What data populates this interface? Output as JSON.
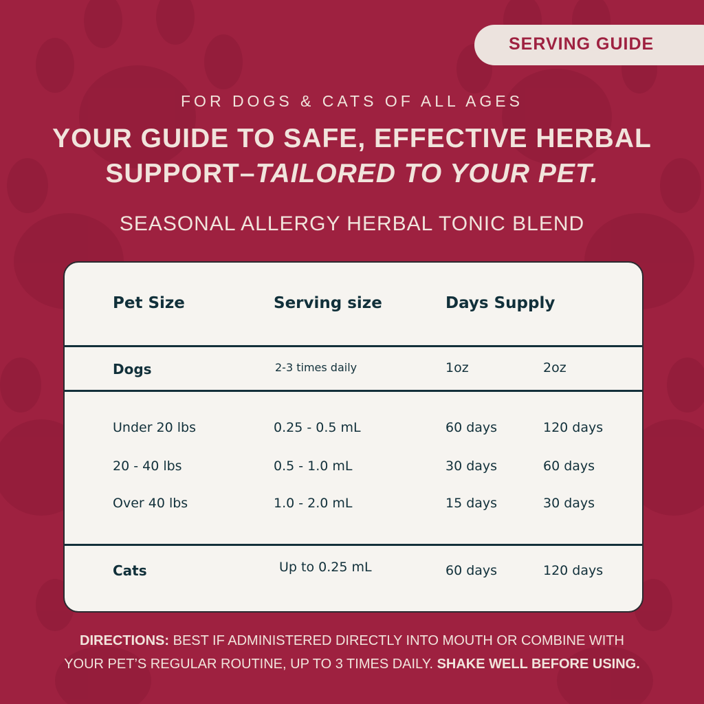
{
  "colors": {
    "background": "#9e2140",
    "paw": "#8e1c38",
    "cream": "#f1e4dc",
    "table_bg": "#f6f4f0",
    "table_text": "#11303a"
  },
  "badge": "SERVING GUIDE",
  "subtitle": "FOR DOGS & CATS OF ALL AGES",
  "headline": {
    "line1": "YOUR GUIDE TO SAFE, EFFECTIVE HERBAL",
    "line2_plain": "SUPPORT–",
    "line2_italic": "TAILORED TO YOUR PET."
  },
  "product": "SEASONAL ALLERGY HERBAL TONIC BLEND",
  "table": {
    "headers": [
      "Pet Size",
      "Serving size",
      "Days Supply"
    ],
    "dogs": {
      "label": "Dogs",
      "serving": "2-3 times daily",
      "size1": "1oz",
      "size2": "2oz"
    },
    "rows": [
      [
        "Under 20 lbs",
        "0.25 - 0.5 mL",
        "60 days",
        "120 days"
      ],
      [
        "20 - 40 lbs",
        "0.5 - 1.0 mL",
        "30 days",
        "60 days"
      ],
      [
        "Over 40 lbs",
        "1.0 - 2.0 mL",
        "15 days",
        "30 days"
      ]
    ],
    "cats": [
      "Cats",
      "Up to 0.25 mL",
      "60 days",
      "120 days"
    ]
  },
  "directions": {
    "label": "DIRECTIONS:",
    "text1": " BEST IF ADMINISTERED DIRECTLY INTO MOUTH OR COMBINE WITH",
    "text2": "YOUR PET’S REGULAR ROUTINE, UP TO 3 TIMES DAILY. ",
    "emphasis": "SHAKE WELL BEFORE USING."
  }
}
